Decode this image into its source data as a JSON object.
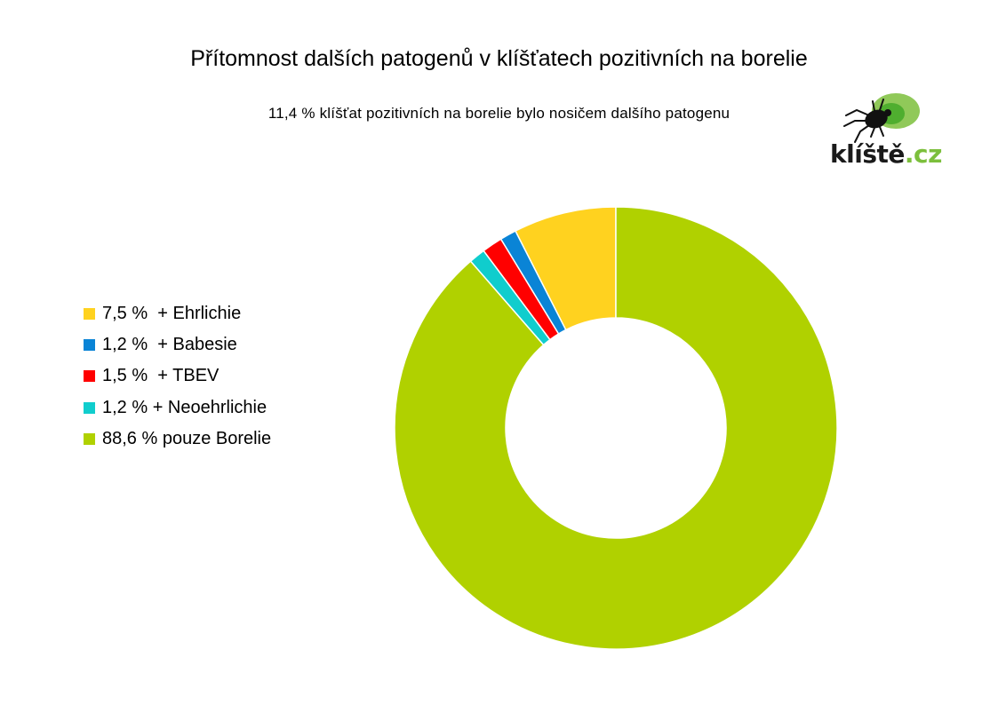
{
  "chart_data": {
    "type": "pie",
    "variant": "donut",
    "title": "Přítomnost dalších patogenů v klíšťatech pozitivních na borelie",
    "subtitle": "11,4 % klíšťat pozitivních na borelie bylo nosičem dalšího patogenu",
    "legend_position": "left",
    "slices": [
      {
        "label": "7,5 %  + Ehrlichie",
        "value": 7.5,
        "color": "#ffd21f"
      },
      {
        "label": "1,2 %  + Babesie",
        "value": 1.2,
        "color": "#0a84d6"
      },
      {
        "label": "1,5 %  + TBEV",
        "value": 1.5,
        "color": "#ff0000"
      },
      {
        "label": "1,2 % + Neoehrlichie",
        "value": 1.2,
        "color": "#10cdcd"
      },
      {
        "label": "88,6 % pouze Borelie",
        "value": 88.6,
        "color": "#b0d100"
      }
    ]
  },
  "logo": {
    "text_main": "klíště",
    "text_tld": ".cz",
    "icon": "tick-icon",
    "accent_color": "#7cbf3c"
  }
}
